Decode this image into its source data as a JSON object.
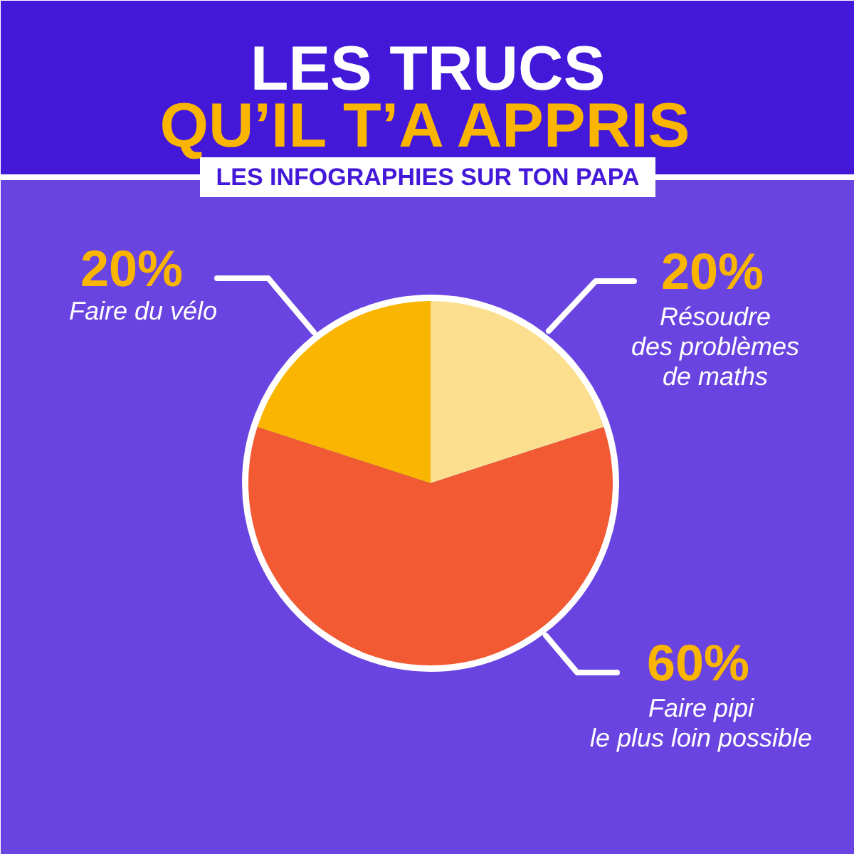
{
  "chart_data": {
    "type": "pie",
    "title": "LES TRUCS\nQU’IL T’A APPRIS",
    "subtitle": "LES INFOGRAPHIES SUR TON PAPA",
    "categories": [
      "Résoudre\ndes problèmes\nde maths",
      "Faire pipi\nle plus loin possible",
      "Faire du vélo"
    ],
    "values": [
      20,
      60,
      20
    ],
    "colors": [
      "#fbdf8e",
      "#f25a33",
      "#f9b500"
    ],
    "value_labels": [
      "20%",
      "60%",
      "20%"
    ],
    "legend": false
  }
}
